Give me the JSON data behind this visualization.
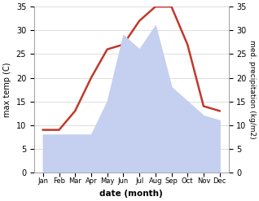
{
  "months": [
    "Jan",
    "Feb",
    "Mar",
    "Apr",
    "May",
    "Jun",
    "Jul",
    "Aug",
    "Sep",
    "Oct",
    "Nov",
    "Dec"
  ],
  "temperature": [
    9,
    9,
    13,
    20,
    26,
    27,
    32,
    35,
    35,
    27,
    14,
    13
  ],
  "precipitation": [
    8,
    8,
    8,
    8,
    15,
    29,
    26,
    31,
    18,
    15,
    12,
    11
  ],
  "temp_color": "#c0392b",
  "precip_fill_color": "#c5cff0",
  "ylim": [
    0,
    35
  ],
  "yticks": [
    0,
    5,
    10,
    15,
    20,
    25,
    30,
    35
  ],
  "xlabel": "date (month)",
  "ylabel_left": "max temp (C)",
  "ylabel_right": "med. precipitation (kg/m2)",
  "bg_color": "#ffffff",
  "grid_color": "#d0d0d0",
  "line_width": 1.8
}
